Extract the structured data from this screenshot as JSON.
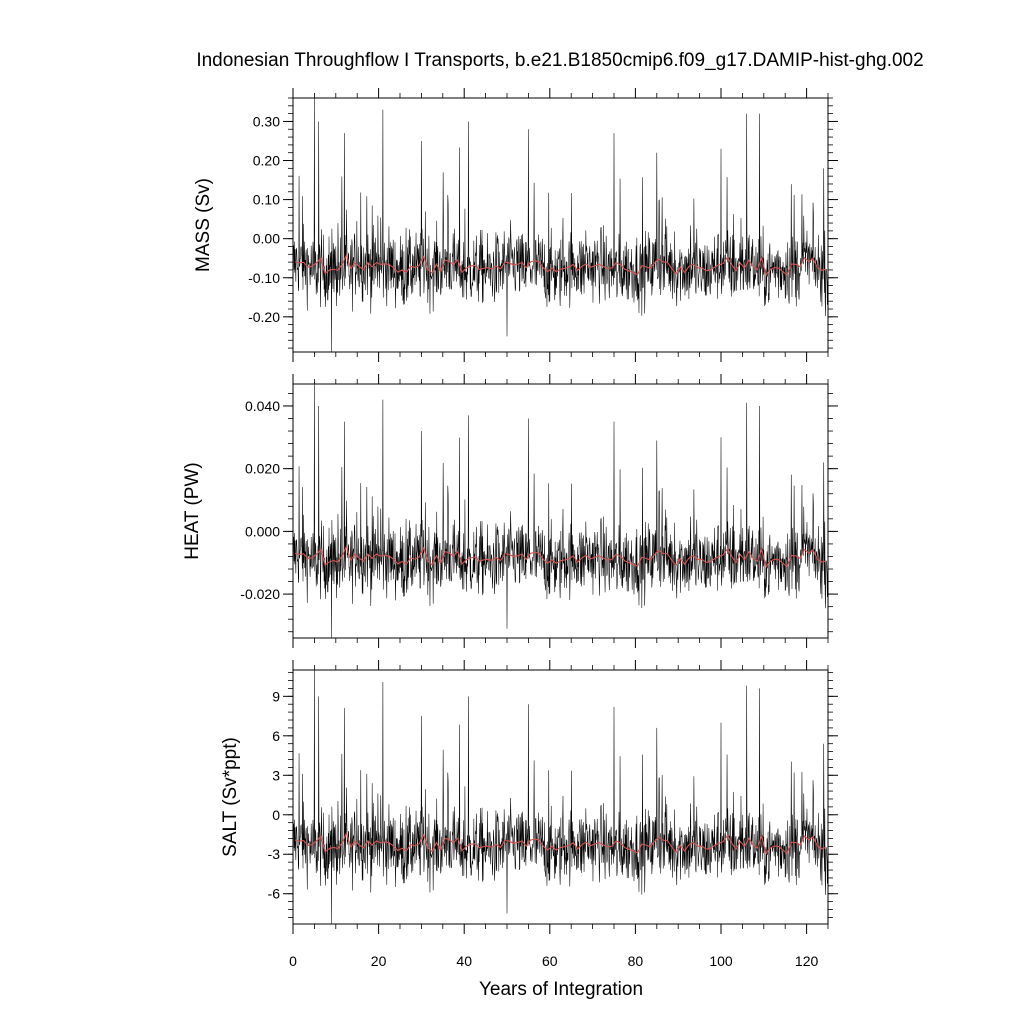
{
  "chart_data": {
    "type": "line",
    "title": "Indonesian Throughflow I Transports, b.e21.B1850cmip6.f09_g17.DAMIP-hist-ghg.002",
    "xlabel": "Years of Integration",
    "xlim": [
      0,
      125
    ],
    "x_ticks": [
      0,
      20,
      40,
      60,
      80,
      100,
      120
    ],
    "x_tick_labels": [
      "0",
      "20",
      "40",
      "60",
      "80",
      "100",
      "120"
    ],
    "colors": {
      "monthly": "#000000",
      "annual": "#d9534f"
    },
    "panels": [
      {
        "ylabel": "MASS (Sv)",
        "ylim": [
          -0.29,
          0.36
        ],
        "y_ticks": [
          -0.2,
          -0.1,
          0.0,
          0.1,
          0.2,
          0.3
        ],
        "y_tick_labels": [
          "-0.20",
          "-0.10",
          "0.00",
          "0.10",
          "0.20",
          "0.30"
        ],
        "mean": -0.075,
        "amplitude": 0.065,
        "spikes": [
          [
            5,
            0.36
          ],
          [
            6,
            0.3
          ],
          [
            9,
            -0.29
          ],
          [
            12,
            0.27
          ],
          [
            21,
            0.33
          ],
          [
            30,
            0.25
          ],
          [
            41,
            0.3
          ],
          [
            50,
            -0.25
          ],
          [
            55,
            0.28
          ],
          [
            75,
            0.27
          ],
          [
            85,
            0.22
          ],
          [
            100,
            0.23
          ],
          [
            106,
            0.32
          ],
          [
            109,
            0.32
          ],
          [
            124,
            0.18
          ]
        ]
      },
      {
        "ylabel": "HEAT (PW)",
        "ylim": [
          -0.034,
          0.047
        ],
        "y_ticks": [
          -0.02,
          0.0,
          0.02,
          0.04
        ],
        "y_tick_labels": [
          "-0.020",
          "0.000",
          "0.020",
          "0.040"
        ],
        "mean": -0.009,
        "amplitude": 0.0082,
        "spikes": [
          [
            5,
            0.047
          ],
          [
            6,
            0.04
          ],
          [
            9,
            -0.034
          ],
          [
            12,
            0.035
          ],
          [
            21,
            0.042
          ],
          [
            30,
            0.032
          ],
          [
            41,
            0.037
          ],
          [
            50,
            -0.031
          ],
          [
            55,
            0.036
          ],
          [
            75,
            0.035
          ],
          [
            85,
            0.029
          ],
          [
            100,
            0.03
          ],
          [
            106,
            0.041
          ],
          [
            109,
            0.04
          ],
          [
            124,
            0.022
          ]
        ]
      },
      {
        "ylabel": "SALT (Sv*ppt)",
        "ylim": [
          -8.3,
          11.0
        ],
        "y_ticks": [
          -6,
          -3,
          0,
          3,
          6,
          9
        ],
        "y_tick_labels": [
          "-6",
          "-3",
          "0",
          "3",
          "6",
          "9"
        ],
        "mean": -2.4,
        "amplitude": 1.95,
        "spikes": [
          [
            5,
            11.0
          ],
          [
            6,
            9.0
          ],
          [
            9,
            -8.3
          ],
          [
            12,
            8.1
          ],
          [
            21,
            10.1
          ],
          [
            30,
            7.5
          ],
          [
            41,
            9.0
          ],
          [
            50,
            -7.5
          ],
          [
            55,
            8.4
          ],
          [
            75,
            8.2
          ],
          [
            85,
            6.6
          ],
          [
            100,
            7.0
          ],
          [
            106,
            9.8
          ],
          [
            109,
            9.6
          ],
          [
            124,
            5.4
          ]
        ]
      }
    ]
  }
}
